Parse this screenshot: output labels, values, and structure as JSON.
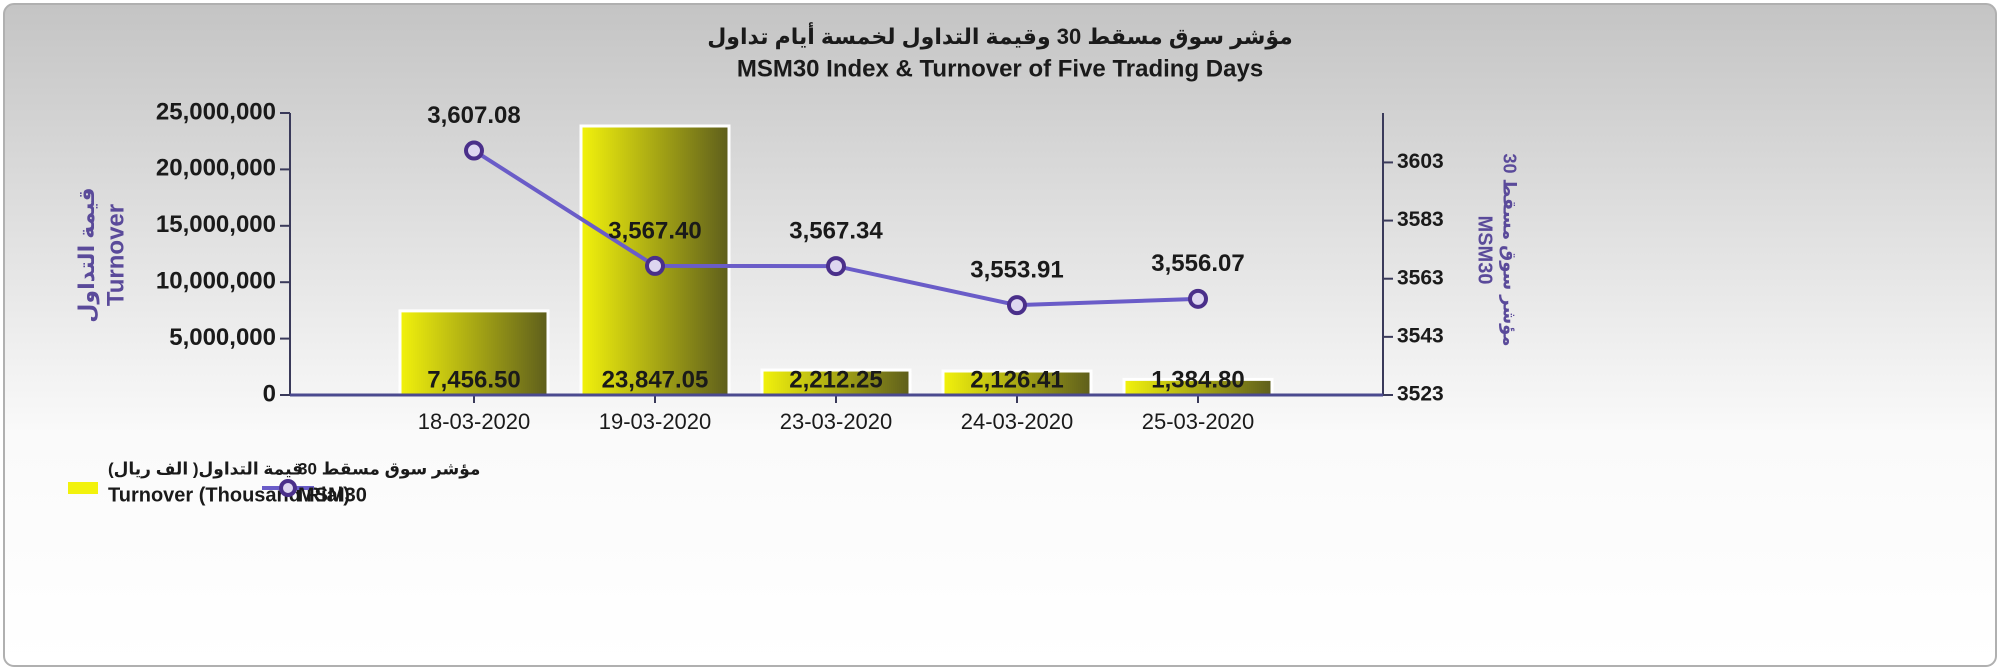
{
  "chart_data": {
    "type": "bar",
    "title": "مؤشر سوق مسقط 30 وقيمة التداول لخمسة أيام تداول",
    "subtitle": "MSM30 Index & Turnover of Five Trading Days",
    "ylabel": [
      "قيمة التداول",
      "Turnover"
    ],
    "y2label": [
      "مؤشر سوق مسقط 30",
      "MSM30"
    ],
    "categories": [
      "18-03-2020",
      "19-03-2020",
      "23-03-2020",
      "24-03-2020",
      "25-03-2020"
    ],
    "series": [
      {
        "name": [
          "قيمة التداول( الف ريال)",
          "Turnover (Thousand Rial)"
        ],
        "type": "bar",
        "color": "#f2f20c",
        "values": [
          7456500,
          23847050,
          2212250,
          2126410,
          1384800
        ],
        "value_labels": [
          "7,456.50",
          "23,847.05",
          "2,212.25",
          "2,126.41",
          "1,384.80"
        ]
      },
      {
        "name": [
          "مؤشر سوق مسقط 30",
          "MSM30"
        ],
        "type": "line",
        "axis": "y2",
        "color": "#6a5cc8",
        "values": [
          3607.08,
          3567.4,
          3567.34,
          3553.91,
          3556.07
        ],
        "value_labels": [
          "3,607.08",
          "3,567.40",
          "3,567.34",
          "3,553.91",
          "3,556.07"
        ]
      }
    ],
    "ylim": [
      0,
      25000000
    ],
    "yticks": [
      0,
      {
        "value": 5000000,
        "label": "5,000,000"
      },
      {
        "value": 10000000,
        "label": "10,000,000"
      },
      {
        "value": 15000000,
        "label": "15,000,000"
      },
      {
        "value": 20000000,
        "label": "20,000,000"
      },
      {
        "value": 25000000,
        "label": "25,000,000"
      }
    ],
    "y2lim": [
      3523,
      3620
    ],
    "y2ticks": [
      3523,
      3543,
      3563,
      3583,
      3603
    ]
  }
}
